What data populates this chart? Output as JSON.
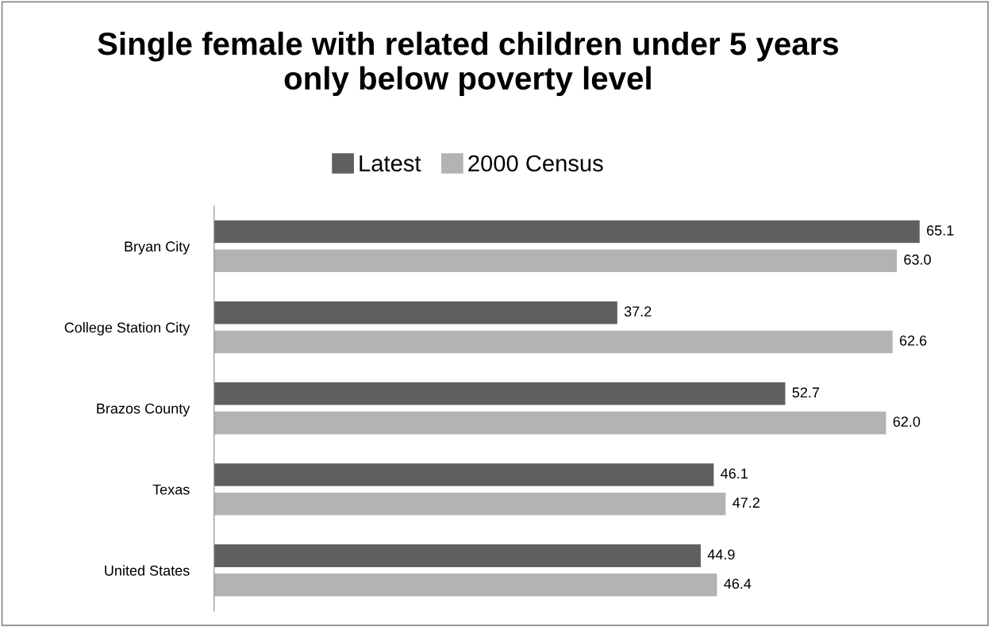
{
  "chart_data": {
    "type": "bar",
    "orientation": "horizontal",
    "title": "Single female with related children under 5 years\nonly below poverty level",
    "categories": [
      "Bryan City",
      "College Station City",
      "Brazos County",
      "Texas",
      "United States"
    ],
    "series": [
      {
        "name": "Latest",
        "color": "#5f5f5f",
        "values": [
          65.1,
          37.2,
          52.7,
          46.1,
          44.9
        ],
        "value_labels": [
          "65.1",
          "37.2",
          "52.7",
          "46.1",
          "44.9"
        ]
      },
      {
        "name": "2000 Census",
        "color": "#b3b3b3",
        "values": [
          63.0,
          62.6,
          62.0,
          47.2,
          46.4
        ],
        "value_labels": [
          "63.0",
          "62.6",
          "62.0",
          "47.2",
          "46.4"
        ]
      }
    ],
    "legend": "top",
    "grid": false
  }
}
